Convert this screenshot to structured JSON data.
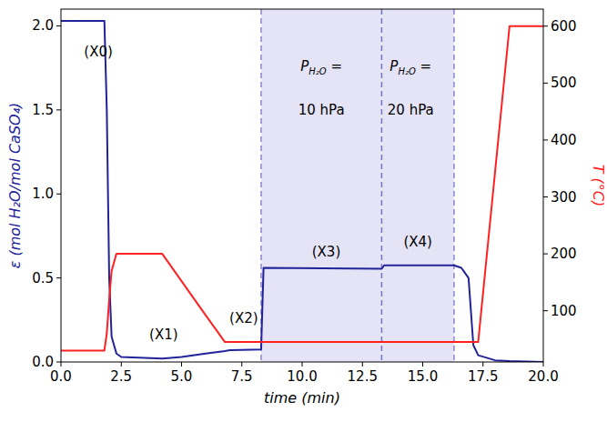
{
  "chart_data": {
    "type": "line",
    "x_label": "time (min)",
    "y_label": "ε (mol H₂O/mol CaSO₄)",
    "y2_label": "T (°C)",
    "x": [
      0,
      1.8,
      1.9,
      2.0,
      2.1,
      2.3,
      2.5,
      4.2,
      5,
      6,
      6.8,
      7,
      8.3,
      8.4,
      13.3,
      13.4,
      16.3,
      16.6,
      16.9,
      17.1,
      17.3,
      18,
      18.6,
      20
    ],
    "series": [
      {
        "name": "ε",
        "color": "#22229a",
        "axis": "y",
        "values": [
          2.03,
          2.03,
          1.5,
          0.5,
          0.15,
          0.05,
          0.03,
          0.02,
          0.03,
          0.05,
          0.065,
          0.07,
          0.075,
          0.56,
          0.555,
          0.575,
          0.575,
          0.56,
          0.5,
          0.1,
          0.04,
          0.01,
          0.005,
          0.0
        ]
      },
      {
        "name": "T",
        "color": "#ff2020",
        "axis": "y2",
        "values": [
          30,
          30,
          60,
          120,
          170,
          200,
          200,
          200,
          152,
          92,
          45,
          45,
          45,
          45,
          45,
          45,
          45,
          45,
          45,
          45,
          45,
          344,
          600,
          600
        ]
      }
    ],
    "xlim": [
      0,
      20
    ],
    "xticks": [
      {
        "value": 0,
        "label": "0.0"
      },
      2.5,
      {
        "value": 5,
        "label": "5.0"
      },
      7.5,
      {
        "value": 10,
        "label": "10.0"
      },
      12.5,
      {
        "value": 15,
        "label": "15.0"
      },
      17.5,
      {
        "value": 20,
        "label": "20.0"
      }
    ],
    "ylim": [
      0,
      2.1
    ],
    "yticks": [
      {
        "value": 0,
        "label": "0.0"
      },
      0.5,
      {
        "value": 1,
        "label": "1.0"
      },
      1.5,
      {
        "value": 2,
        "label": "2.0"
      }
    ],
    "y2lim": [
      10,
      630
    ],
    "y2ticks": [
      100,
      200,
      300,
      400,
      500,
      600
    ],
    "regions": [
      {
        "start": 8.3,
        "end": 13.3
      },
      {
        "start": 13.3,
        "end": 16.3
      }
    ],
    "annotations": [
      {
        "text": "(X0)",
        "x": 1.55,
        "y": 1.845
      },
      {
        "text": "(X1)",
        "x": 4.26,
        "y": 0.16
      },
      {
        "text": "(X2)",
        "x": 7.58,
        "y": 0.26
      },
      {
        "text": "(X3)",
        "x": 11.0,
        "y": 0.655
      },
      {
        "text": "(X4)",
        "x": 14.8,
        "y": 0.714
      },
      {
        "text": "P",
        "subscript": "H₂O",
        "suffix": " =",
        "x": 10.8,
        "y": 1.76
      },
      {
        "text": "10 hPa",
        "x": 10.8,
        "y": 1.5
      },
      {
        "text": "P",
        "subscript": "H₂O",
        "suffix": " =",
        "x": 14.5,
        "y": 1.76
      },
      {
        "text": "20 hPa",
        "x": 14.5,
        "y": 1.5
      }
    ]
  }
}
